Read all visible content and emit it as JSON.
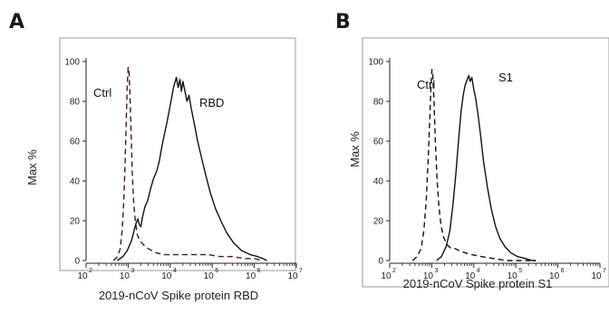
{
  "chart_data": [
    {
      "panel_letter": "A",
      "type": "line",
      "xscale": "log",
      "xlim": [
        100,
        10000000
      ],
      "ylim": [
        0,
        100
      ],
      "ylabel": "Max %",
      "xlabel": "2019-nCoV Spike protein RBD",
      "yticks": [
        "0",
        "20",
        "40",
        "60",
        "80",
        "100"
      ],
      "xtick_base": "10",
      "xtick_exponents": [
        "2",
        "3",
        "4",
        "5",
        "6",
        "7"
      ],
      "series": [
        {
          "name": "Ctrl",
          "style": "dashed",
          "color": "#4a1520",
          "points": [
            [
              450,
              0
            ],
            [
              560,
              2
            ],
            [
              650,
              6
            ],
            [
              720,
              15
            ],
            [
              790,
              30
            ],
            [
              850,
              50
            ],
            [
              900,
              70
            ],
            [
              950,
              88
            ],
            [
              1000,
              97
            ],
            [
              1050,
              95
            ],
            [
              1100,
              85
            ],
            [
              1170,
              65
            ],
            [
              1250,
              45
            ],
            [
              1350,
              30
            ],
            [
              1480,
              20
            ],
            [
              1650,
              13
            ],
            [
              1900,
              10
            ],
            [
              2300,
              8
            ],
            [
              3000,
              6
            ],
            [
              4500,
              4
            ],
            [
              7000,
              3
            ],
            [
              12000,
              3
            ],
            [
              20000,
              3
            ],
            [
              40000,
              3
            ],
            [
              80000,
              3
            ],
            [
              150000,
              2
            ],
            [
              300000,
              2
            ],
            [
              600000,
              1
            ],
            [
              1000000,
              1
            ],
            [
              1500000,
              0
            ]
          ]
        },
        {
          "name": "RBD",
          "style": "solid",
          "color": "#111111",
          "points": [
            [
              550,
              0
            ],
            [
              750,
              2
            ],
            [
              950,
              5
            ],
            [
              1200,
              10
            ],
            [
              1500,
              18
            ],
            [
              1700,
              21
            ],
            [
              1850,
              18
            ],
            [
              2000,
              17
            ],
            [
              2200,
              22
            ],
            [
              2500,
              27
            ],
            [
              2900,
              30
            ],
            [
              3400,
              36
            ],
            [
              4000,
              41
            ],
            [
              4800,
              45
            ],
            [
              5500,
              50
            ],
            [
              6300,
              57
            ],
            [
              7200,
              63
            ],
            [
              8500,
              70
            ],
            [
              10000,
              78
            ],
            [
              12000,
              87
            ],
            [
              14000,
              92
            ],
            [
              15500,
              87
            ],
            [
              17000,
              91
            ],
            [
              18500,
              85
            ],
            [
              20000,
              90
            ],
            [
              22000,
              86
            ],
            [
              25000,
              80
            ],
            [
              28000,
              83
            ],
            [
              32000,
              76
            ],
            [
              38000,
              68
            ],
            [
              45000,
              60
            ],
            [
              55000,
              52
            ],
            [
              70000,
              43
            ],
            [
              90000,
              34
            ],
            [
              120000,
              26
            ],
            [
              160000,
              20
            ],
            [
              220000,
              14
            ],
            [
              320000,
              9
            ],
            [
              500000,
              5
            ],
            [
              800000,
              3
            ],
            [
              1200000,
              2
            ],
            [
              1600000,
              1
            ],
            [
              2000000,
              0
            ]
          ]
        }
      ]
    },
    {
      "panel_letter": "B",
      "type": "line",
      "xscale": "log",
      "xlim": [
        100,
        10000000
      ],
      "ylim": [
        0,
        100
      ],
      "ylabel": "Max %",
      "xlabel": "2019-nCoV Spike protein S1",
      "yticks": [
        "0",
        "20",
        "40",
        "60",
        "80",
        "100"
      ],
      "xtick_base": "10",
      "xtick_exponents": [
        "2",
        "3",
        "4",
        "5",
        "6",
        "7"
      ],
      "series": [
        {
          "name": "Ctrl",
          "style": "dashed",
          "color": "#111111",
          "points": [
            [
              350,
              0
            ],
            [
              450,
              2
            ],
            [
              560,
              6
            ],
            [
              650,
              15
            ],
            [
              740,
              30
            ],
            [
              820,
              50
            ],
            [
              900,
              72
            ],
            [
              960,
              88
            ],
            [
              1010,
              96
            ],
            [
              1060,
              93
            ],
            [
              1130,
              80
            ],
            [
              1220,
              60
            ],
            [
              1330,
              42
            ],
            [
              1470,
              28
            ],
            [
              1650,
              18
            ],
            [
              1900,
              12
            ],
            [
              2300,
              8
            ],
            [
              2900,
              6
            ],
            [
              3600,
              6
            ],
            [
              4500,
              5
            ],
            [
              6000,
              4
            ],
            [
              9000,
              3
            ],
            [
              15000,
              2
            ],
            [
              30000,
              1
            ],
            [
              60000,
              0
            ],
            [
              150000,
              0
            ],
            [
              300000,
              0
            ]
          ]
        },
        {
          "name": "S1",
          "style": "solid",
          "color": "#111111",
          "points": [
            [
              1300,
              0
            ],
            [
              1700,
              2
            ],
            [
              2200,
              7
            ],
            [
              2700,
              15
            ],
            [
              3200,
              28
            ],
            [
              3800,
              45
            ],
            [
              4400,
              62
            ],
            [
              5000,
              75
            ],
            [
              5600,
              83
            ],
            [
              6200,
              88
            ],
            [
              7000,
              91
            ],
            [
              7600,
              93
            ],
            [
              8200,
              90
            ],
            [
              9000,
              92
            ],
            [
              10000,
              86
            ],
            [
              11000,
              82
            ],
            [
              12500,
              74
            ],
            [
              14500,
              63
            ],
            [
              17000,
              50
            ],
            [
              21000,
              37
            ],
            [
              26000,
              26
            ],
            [
              33000,
              17
            ],
            [
              42000,
              11
            ],
            [
              55000,
              7
            ],
            [
              75000,
              4
            ],
            [
              110000,
              2
            ],
            [
              170000,
              1
            ],
            [
              250000,
              0
            ],
            [
              300000,
              0
            ]
          ]
        }
      ]
    }
  ]
}
